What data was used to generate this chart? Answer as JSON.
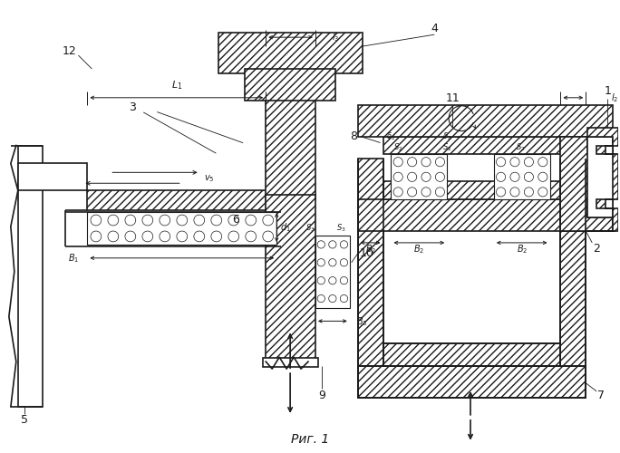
{
  "bg": "#ffffff",
  "lc": "#1a1a1a",
  "title": "Риг. 1",
  "fig_w": 6.84,
  "fig_h": 5.0,
  "dpi": 100
}
